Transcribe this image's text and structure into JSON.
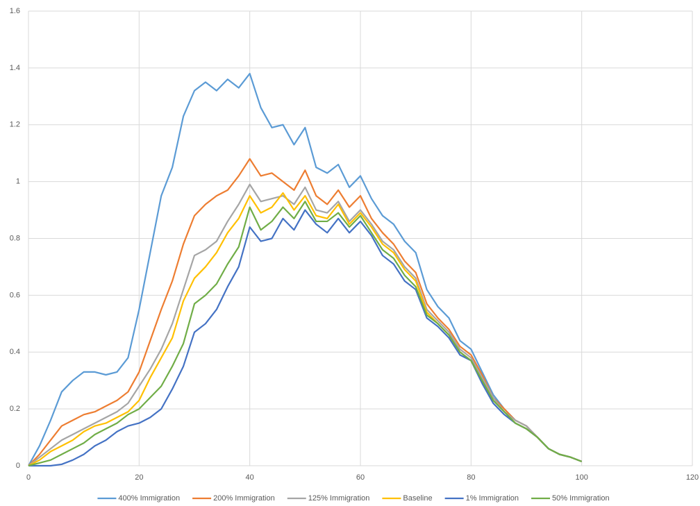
{
  "chart_data": {
    "type": "line",
    "x": [
      0,
      2,
      4,
      6,
      8,
      10,
      12,
      14,
      16,
      18,
      20,
      22,
      24,
      26,
      28,
      30,
      32,
      34,
      36,
      38,
      40,
      42,
      44,
      46,
      48,
      50,
      52,
      54,
      56,
      58,
      60,
      62,
      64,
      66,
      68,
      70,
      72,
      74,
      76,
      78,
      80,
      82,
      84,
      86,
      88,
      90,
      92,
      94,
      96,
      98,
      100
    ],
    "series": [
      {
        "name": "400% Immigration",
        "color": "#5b9bd5",
        "values": [
          0,
          0.07,
          0.16,
          0.26,
          0.3,
          0.33,
          0.33,
          0.32,
          0.33,
          0.38,
          0.55,
          0.75,
          0.95,
          1.05,
          1.23,
          1.32,
          1.35,
          1.32,
          1.36,
          1.33,
          1.38,
          1.26,
          1.19,
          1.2,
          1.13,
          1.19,
          1.05,
          1.03,
          1.06,
          0.98,
          1.02,
          0.94,
          0.88,
          0.85,
          0.79,
          0.75,
          0.62,
          0.56,
          0.52,
          0.44,
          0.41,
          0.33,
          0.25,
          0.2,
          0.16,
          0.14,
          0.1,
          0.06,
          0.04,
          0.03,
          0.015
        ]
      },
      {
        "name": "200% Immigration",
        "color": "#ed7d31",
        "values": [
          0,
          0.04,
          0.09,
          0.14,
          0.16,
          0.18,
          0.19,
          0.21,
          0.23,
          0.26,
          0.33,
          0.44,
          0.55,
          0.65,
          0.78,
          0.88,
          0.92,
          0.95,
          0.97,
          1.02,
          1.08,
          1.02,
          1.03,
          1.0,
          0.97,
          1.04,
          0.95,
          0.92,
          0.97,
          0.91,
          0.95,
          0.87,
          0.82,
          0.78,
          0.72,
          0.68,
          0.57,
          0.52,
          0.48,
          0.42,
          0.39,
          0.32,
          0.24,
          0.2,
          0.16,
          0.14,
          0.1,
          0.06,
          0.04,
          0.03,
          0.015
        ]
      },
      {
        "name": "125% Immigration",
        "color": "#a5a5a5",
        "values": [
          0,
          0.03,
          0.06,
          0.09,
          0.11,
          0.13,
          0.15,
          0.17,
          0.19,
          0.22,
          0.28,
          0.34,
          0.41,
          0.5,
          0.62,
          0.74,
          0.76,
          0.79,
          0.86,
          0.92,
          0.99,
          0.93,
          0.94,
          0.95,
          0.92,
          0.98,
          0.9,
          0.89,
          0.93,
          0.86,
          0.9,
          0.85,
          0.79,
          0.76,
          0.7,
          0.66,
          0.55,
          0.51,
          0.47,
          0.41,
          0.38,
          0.31,
          0.24,
          0.19,
          0.16,
          0.14,
          0.1,
          0.06,
          0.04,
          0.03,
          0.015
        ]
      },
      {
        "name": "Baseline",
        "color": "#ffc000",
        "values": [
          0,
          0.02,
          0.05,
          0.07,
          0.09,
          0.12,
          0.14,
          0.15,
          0.17,
          0.19,
          0.23,
          0.31,
          0.38,
          0.45,
          0.58,
          0.66,
          0.7,
          0.75,
          0.82,
          0.87,
          0.95,
          0.89,
          0.91,
          0.96,
          0.9,
          0.95,
          0.88,
          0.87,
          0.92,
          0.85,
          0.89,
          0.84,
          0.78,
          0.75,
          0.69,
          0.65,
          0.54,
          0.5,
          0.46,
          0.4,
          0.37,
          0.3,
          0.23,
          0.19,
          0.15,
          0.13,
          0.1,
          0.06,
          0.04,
          0.03,
          0.015
        ]
      },
      {
        "name": "1% Immigration",
        "color": "#4472c4",
        "values": [
          0,
          0,
          0,
          0.005,
          0.02,
          0.04,
          0.07,
          0.09,
          0.12,
          0.14,
          0.15,
          0.17,
          0.2,
          0.27,
          0.35,
          0.47,
          0.5,
          0.55,
          0.63,
          0.7,
          0.84,
          0.79,
          0.8,
          0.87,
          0.83,
          0.9,
          0.85,
          0.82,
          0.87,
          0.82,
          0.86,
          0.81,
          0.74,
          0.71,
          0.65,
          0.62,
          0.52,
          0.49,
          0.45,
          0.39,
          0.37,
          0.29,
          0.22,
          0.18,
          0.15,
          0.13,
          0.1,
          0.06,
          0.04,
          0.03,
          0.015
        ]
      },
      {
        "name": "50% Immigration",
        "color": "#70ad47",
        "values": [
          0,
          0.01,
          0.02,
          0.04,
          0.06,
          0.08,
          0.11,
          0.13,
          0.15,
          0.18,
          0.2,
          0.24,
          0.28,
          0.35,
          0.43,
          0.57,
          0.6,
          0.64,
          0.71,
          0.77,
          0.91,
          0.83,
          0.86,
          0.91,
          0.87,
          0.93,
          0.86,
          0.86,
          0.89,
          0.84,
          0.88,
          0.82,
          0.76,
          0.73,
          0.67,
          0.63,
          0.53,
          0.5,
          0.46,
          0.4,
          0.37,
          0.3,
          0.23,
          0.19,
          0.15,
          0.13,
          0.1,
          0.06,
          0.04,
          0.03,
          0.015
        ]
      }
    ],
    "xlim": [
      0,
      120
    ],
    "xticks": [
      0,
      20,
      40,
      60,
      80,
      100,
      120
    ],
    "ylim": [
      0,
      1.6
    ],
    "yticks": [
      0,
      0.2,
      0.4,
      0.6,
      0.8,
      1,
      1.2,
      1.4,
      1.6
    ],
    "grid": true,
    "legend": "bottom"
  }
}
